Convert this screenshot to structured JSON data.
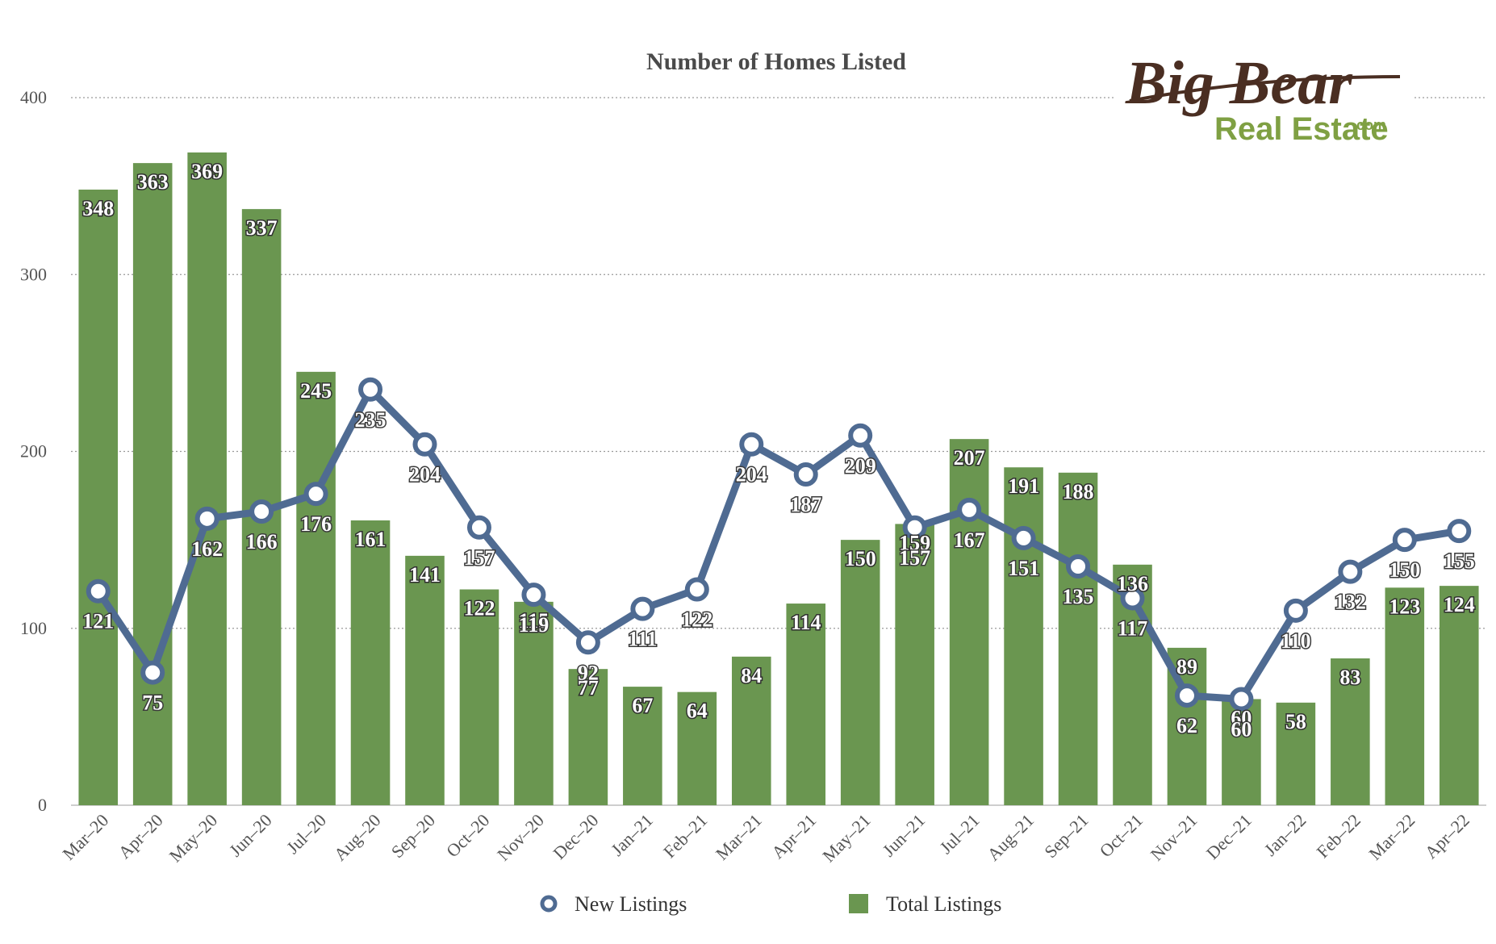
{
  "chart_data": {
    "type": "bar",
    "title": "Number of Homes Listed",
    "xlabel": "",
    "ylabel": "",
    "ylim": [
      0,
      400
    ],
    "yticks": [
      0,
      100,
      200,
      300,
      400
    ],
    "grid": true,
    "legend_position": "bottom",
    "categories": [
      "Mar–20",
      "Apr–20",
      "May–20",
      "Jun–20",
      "Jul–20",
      "Aug–20",
      "Sep–20",
      "Oct–20",
      "Nov–20",
      "Dec–20",
      "Jan–21",
      "Feb–21",
      "Mar–21",
      "Apr–21",
      "May–21",
      "Jun–21",
      "Jul–21",
      "Aug–21",
      "Sep–21",
      "Oct–21",
      "Nov–21",
      "Dec–21",
      "Jan–22",
      "Feb–22",
      "Mar–22",
      "Apr–22"
    ],
    "series": [
      {
        "name": "Total Listings",
        "type": "bar",
        "color": "#6a9650",
        "values": [
          348,
          363,
          369,
          337,
          245,
          161,
          141,
          122,
          115,
          77,
          67,
          64,
          84,
          114,
          150,
          159,
          207,
          191,
          188,
          136,
          89,
          60,
          58,
          83,
          123,
          124
        ]
      },
      {
        "name": "New Listings",
        "type": "line",
        "color": "#4f6b92",
        "values": [
          121,
          75,
          162,
          166,
          176,
          235,
          204,
          157,
          119,
          92,
          111,
          122,
          204,
          187,
          209,
          157,
          167,
          151,
          135,
          117,
          62,
          60,
          110,
          132,
          150,
          155
        ]
      }
    ]
  },
  "logo": {
    "line1": "Big Bear",
    "line2": "Real Estate",
    "suffix": ".com"
  }
}
